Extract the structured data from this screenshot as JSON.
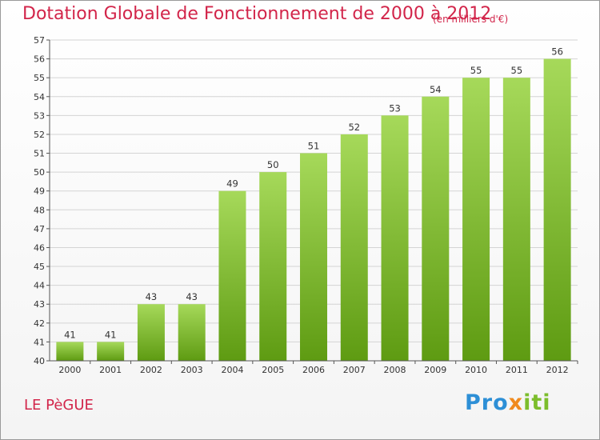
{
  "title": "Dotation Globale de Fonctionnement de 2000 à 2012",
  "unit_note": "(en milliers d'€)",
  "commune": "LE PèGUE",
  "logo": {
    "p1": "Pro",
    "x": "x",
    "p2": "iti",
    "colors": [
      "#2d8fd6",
      "#f08a1e",
      "#7cbd2c"
    ]
  },
  "colors": {
    "title": "#d2254a",
    "bar_top": "#a6d95a",
    "bar_bottom": "#5e9b12",
    "grid": "#d4d4d4",
    "axis": "#555555"
  },
  "chart_data": {
    "type": "bar",
    "title": "Dotation Globale de Fonctionnement de 2000 à 2012",
    "ylabel": "(en milliers d'€)",
    "xlabel": "",
    "categories": [
      "2000",
      "2001",
      "2002",
      "2003",
      "2004",
      "2005",
      "2006",
      "2007",
      "2008",
      "2009",
      "2010",
      "2011",
      "2012"
    ],
    "values": [
      41,
      41,
      43,
      43,
      49,
      50,
      51,
      52,
      53,
      54,
      55,
      55,
      56
    ],
    "ylim": [
      40,
      57
    ],
    "yticks": [
      40,
      41,
      42,
      43,
      44,
      45,
      46,
      47,
      48,
      49,
      50,
      51,
      52,
      53,
      54,
      55,
      56,
      57
    ],
    "grid": true
  }
}
